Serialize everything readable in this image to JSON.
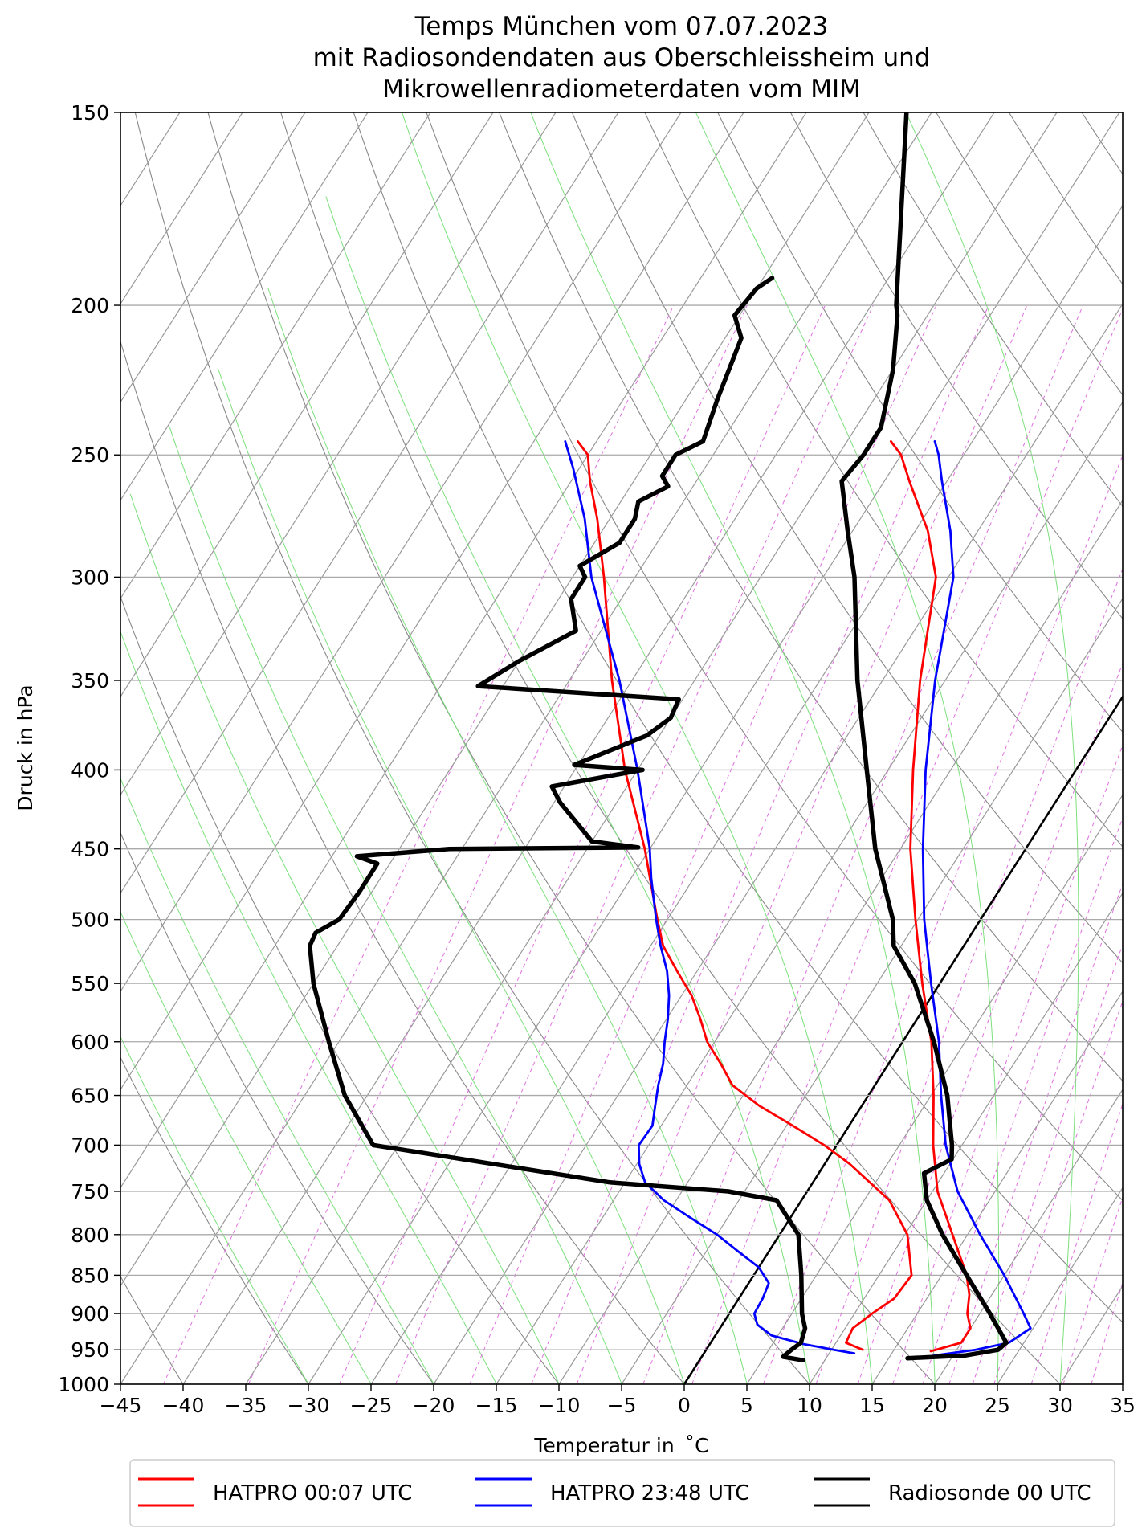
{
  "chart_data": {
    "type": "line",
    "title": [
      "Temps München vom 07.07.2023",
      "mit Radiosondendaten aus Oberschleissheim und",
      "Mikrowellenradiometerdaten vom MIM"
    ],
    "xlabel": "Temperatur in  ˚C",
    "ylabel": "Druck in hPa",
    "xlim": [
      -45,
      35
    ],
    "ylim": [
      1000,
      150
    ],
    "y_scale": "log",
    "x_ticks": [
      -45,
      -40,
      -35,
      -30,
      -25,
      -20,
      -15,
      -10,
      -5,
      0,
      5,
      10,
      15,
      20,
      25,
      30,
      35
    ],
    "x_tick_labels": [
      "−45",
      "−40",
      "−35",
      "−30",
      "−25",
      "−20",
      "−15",
      "−10",
      "−5",
      "0",
      "5",
      "10",
      "15",
      "20",
      "25",
      "30",
      "35"
    ],
    "y_ticks": [
      1000,
      950,
      900,
      850,
      800,
      750,
      700,
      650,
      600,
      550,
      500,
      450,
      400,
      350,
      300,
      250,
      200,
      150
    ],
    "y_tick_labels": [
      "1000",
      "950",
      "900",
      "850",
      "800",
      "750",
      "700",
      "650",
      "600",
      "550",
      "500",
      "450",
      "400",
      "350",
      "300",
      "250",
      "200",
      "150"
    ],
    "grid": true,
    "legend_position": "bottom-outside",
    "series": [
      {
        "name": "HATPRO 00:07 UTC",
        "color": "#ff0000",
        "style": "thin",
        "points": [
          [
            952,
            18.0
          ],
          [
            940,
            20.0
          ],
          [
            920,
            20.0
          ],
          [
            900,
            19.0
          ],
          [
            875,
            18.2
          ],
          [
            850,
            17.0
          ],
          [
            800,
            13.8
          ],
          [
            750,
            10.4
          ],
          [
            720,
            8.8
          ],
          [
            700,
            7.7
          ],
          [
            650,
            5.2
          ],
          [
            600,
            2.3
          ],
          [
            550,
            -1.4
          ],
          [
            500,
            -5.2
          ],
          [
            450,
            -9.2
          ],
          [
            400,
            -13.0
          ],
          [
            350,
            -17.0
          ],
          [
            300,
            -21.0
          ],
          [
            280,
            -24.0
          ],
          [
            260,
            -28.0
          ],
          [
            250,
            -30.0
          ],
          [
            245,
            -31.5
          ]
        ]
      },
      {
        "name": "",
        "color": "#ff0000",
        "style": "thin",
        "points": [
          [
            950,
            12.5
          ],
          [
            940,
            10.8
          ],
          [
            920,
            10.6
          ],
          [
            900,
            11.4
          ],
          [
            880,
            12.4
          ],
          [
            850,
            12.6
          ],
          [
            800,
            10.2
          ],
          [
            760,
            7.0
          ],
          [
            720,
            2.0
          ],
          [
            700,
            -1.0
          ],
          [
            680,
            -4.5
          ],
          [
            660,
            -8.2
          ],
          [
            640,
            -11.4
          ],
          [
            620,
            -13.4
          ],
          [
            600,
            -15.6
          ],
          [
            580,
            -17.3
          ],
          [
            560,
            -19.2
          ],
          [
            540,
            -21.6
          ],
          [
            520,
            -24.0
          ],
          [
            500,
            -25.8
          ],
          [
            450,
            -30.4
          ],
          [
            400,
            -36.0
          ],
          [
            350,
            -41.6
          ],
          [
            300,
            -47.5
          ],
          [
            275,
            -51.0
          ],
          [
            260,
            -53.5
          ],
          [
            250,
            -55.0
          ],
          [
            245,
            -56.5
          ]
        ]
      },
      {
        "name": "HATPRO 23:48 UTC",
        "color": "#0000ff",
        "style": "thin",
        "points": [
          [
            958,
            18.5
          ],
          [
            950,
            21.5
          ],
          [
            940,
            23.8
          ],
          [
            920,
            24.8
          ],
          [
            900,
            23.5
          ],
          [
            850,
            20.0
          ],
          [
            800,
            16.0
          ],
          [
            750,
            12.0
          ],
          [
            700,
            8.7
          ],
          [
            650,
            5.8
          ],
          [
            600,
            2.9
          ],
          [
            550,
            -0.7
          ],
          [
            500,
            -4.5
          ],
          [
            450,
            -8.2
          ],
          [
            400,
            -12.0
          ],
          [
            350,
            -15.8
          ],
          [
            300,
            -19.6
          ],
          [
            280,
            -22.2
          ],
          [
            260,
            -25.4
          ],
          [
            250,
            -27.0
          ],
          [
            245,
            -28.0
          ]
        ]
      },
      {
        "name": "",
        "color": "#0000ff",
        "style": "thin",
        "points": [
          [
            955,
            12.0
          ],
          [
            950,
            10.2
          ],
          [
            942,
            7.5
          ],
          [
            930,
            4.5
          ],
          [
            915,
            2.8
          ],
          [
            900,
            2.0
          ],
          [
            880,
            1.9
          ],
          [
            860,
            1.6
          ],
          [
            840,
            0.0
          ],
          [
            820,
            -2.5
          ],
          [
            800,
            -5.0
          ],
          [
            780,
            -8.0
          ],
          [
            760,
            -11.0
          ],
          [
            740,
            -13.4
          ],
          [
            720,
            -14.8
          ],
          [
            700,
            -15.8
          ],
          [
            680,
            -15.7
          ],
          [
            660,
            -16.5
          ],
          [
            640,
            -17.3
          ],
          [
            620,
            -18.0
          ],
          [
            600,
            -19.0
          ],
          [
            580,
            -19.9
          ],
          [
            560,
            -21.0
          ],
          [
            540,
            -22.4
          ],
          [
            520,
            -24.2
          ],
          [
            500,
            -25.9
          ],
          [
            470,
            -28.4
          ],
          [
            450,
            -30.0
          ],
          [
            400,
            -35.0
          ],
          [
            350,
            -41.0
          ],
          [
            300,
            -48.5
          ],
          [
            275,
            -52.0
          ],
          [
            255,
            -55.5
          ],
          [
            245,
            -57.5
          ]
        ]
      },
      {
        "name": "Radiosonde 00 UTC",
        "color": "#000000",
        "style": "thick",
        "points": [
          [
            962,
            16.5
          ],
          [
            958,
            21.0
          ],
          [
            950,
            23.3
          ],
          [
            940,
            23.6
          ],
          [
            900,
            20.8
          ],
          [
            850,
            17.0
          ],
          [
            800,
            13.0
          ],
          [
            760,
            10.0
          ],
          [
            730,
            8.4
          ],
          [
            715,
            9.9
          ],
          [
            700,
            9.2
          ],
          [
            650,
            6.3
          ],
          [
            600,
            2.5
          ],
          [
            550,
            -2.0
          ],
          [
            520,
            -5.6
          ],
          [
            500,
            -7.0
          ],
          [
            450,
            -12.0
          ],
          [
            400,
            -16.7
          ],
          [
            350,
            -22.0
          ],
          [
            300,
            -27.5
          ],
          [
            280,
            -30.4
          ],
          [
            260,
            -33.4
          ],
          [
            250,
            -33.0
          ],
          [
            240,
            -33.0
          ],
          [
            220,
            -35.0
          ],
          [
            203,
            -37.4
          ],
          [
            200,
            -38.0
          ],
          [
            150,
            -47.0
          ]
        ]
      },
      {
        "name": "",
        "color": "#000000",
        "style": "thick",
        "points": [
          [
            965,
            8.3
          ],
          [
            960,
            6.5
          ],
          [
            950,
            6.8
          ],
          [
            940,
            7.2
          ],
          [
            920,
            6.8
          ],
          [
            900,
            5.8
          ],
          [
            850,
            3.8
          ],
          [
            800,
            1.5
          ],
          [
            760,
            -2.0
          ],
          [
            750,
            -6.3
          ],
          [
            740,
            -16.2
          ],
          [
            700,
            -37.0
          ],
          [
            650,
            -41.8
          ],
          [
            600,
            -45.8
          ],
          [
            550,
            -50.0
          ],
          [
            520,
            -52.2
          ],
          [
            510,
            -52.4
          ],
          [
            500,
            -51.2
          ],
          [
            480,
            -51.0
          ],
          [
            460,
            -51.0
          ],
          [
            455,
            -53.0
          ],
          [
            450,
            -46.0
          ],
          [
            449,
            -31.0
          ],
          [
            445,
            -35.0
          ],
          [
            420,
            -39.5
          ],
          [
            410,
            -41.0
          ],
          [
            400,
            -34.6
          ],
          [
            397,
            -40.3
          ],
          [
            380,
            -36.0
          ],
          [
            370,
            -35.0
          ],
          [
            360,
            -35.3
          ],
          [
            353,
            -52.0
          ],
          [
            340,
            -50.0
          ],
          [
            325,
            -47.0
          ],
          [
            310,
            -49.0
          ],
          [
            300,
            -49.0
          ],
          [
            295,
            -50.0
          ],
          [
            285,
            -48.0
          ],
          [
            275,
            -48.0
          ],
          [
            268,
            -48.6
          ],
          [
            262,
            -47.0
          ],
          [
            258,
            -48.0
          ],
          [
            250,
            -48.0
          ],
          [
            245,
            -46.5
          ],
          [
            230,
            -47.5
          ],
          [
            210,
            -48.7
          ],
          [
            203,
            -50.4
          ],
          [
            195,
            -50.0
          ],
          [
            192,
            -49.3
          ]
        ]
      }
    ],
    "legend": [
      "HATPRO 00:07 UTC",
      "HATPRO 23:48 UTC",
      "Radiosonde 00 UTC"
    ]
  }
}
